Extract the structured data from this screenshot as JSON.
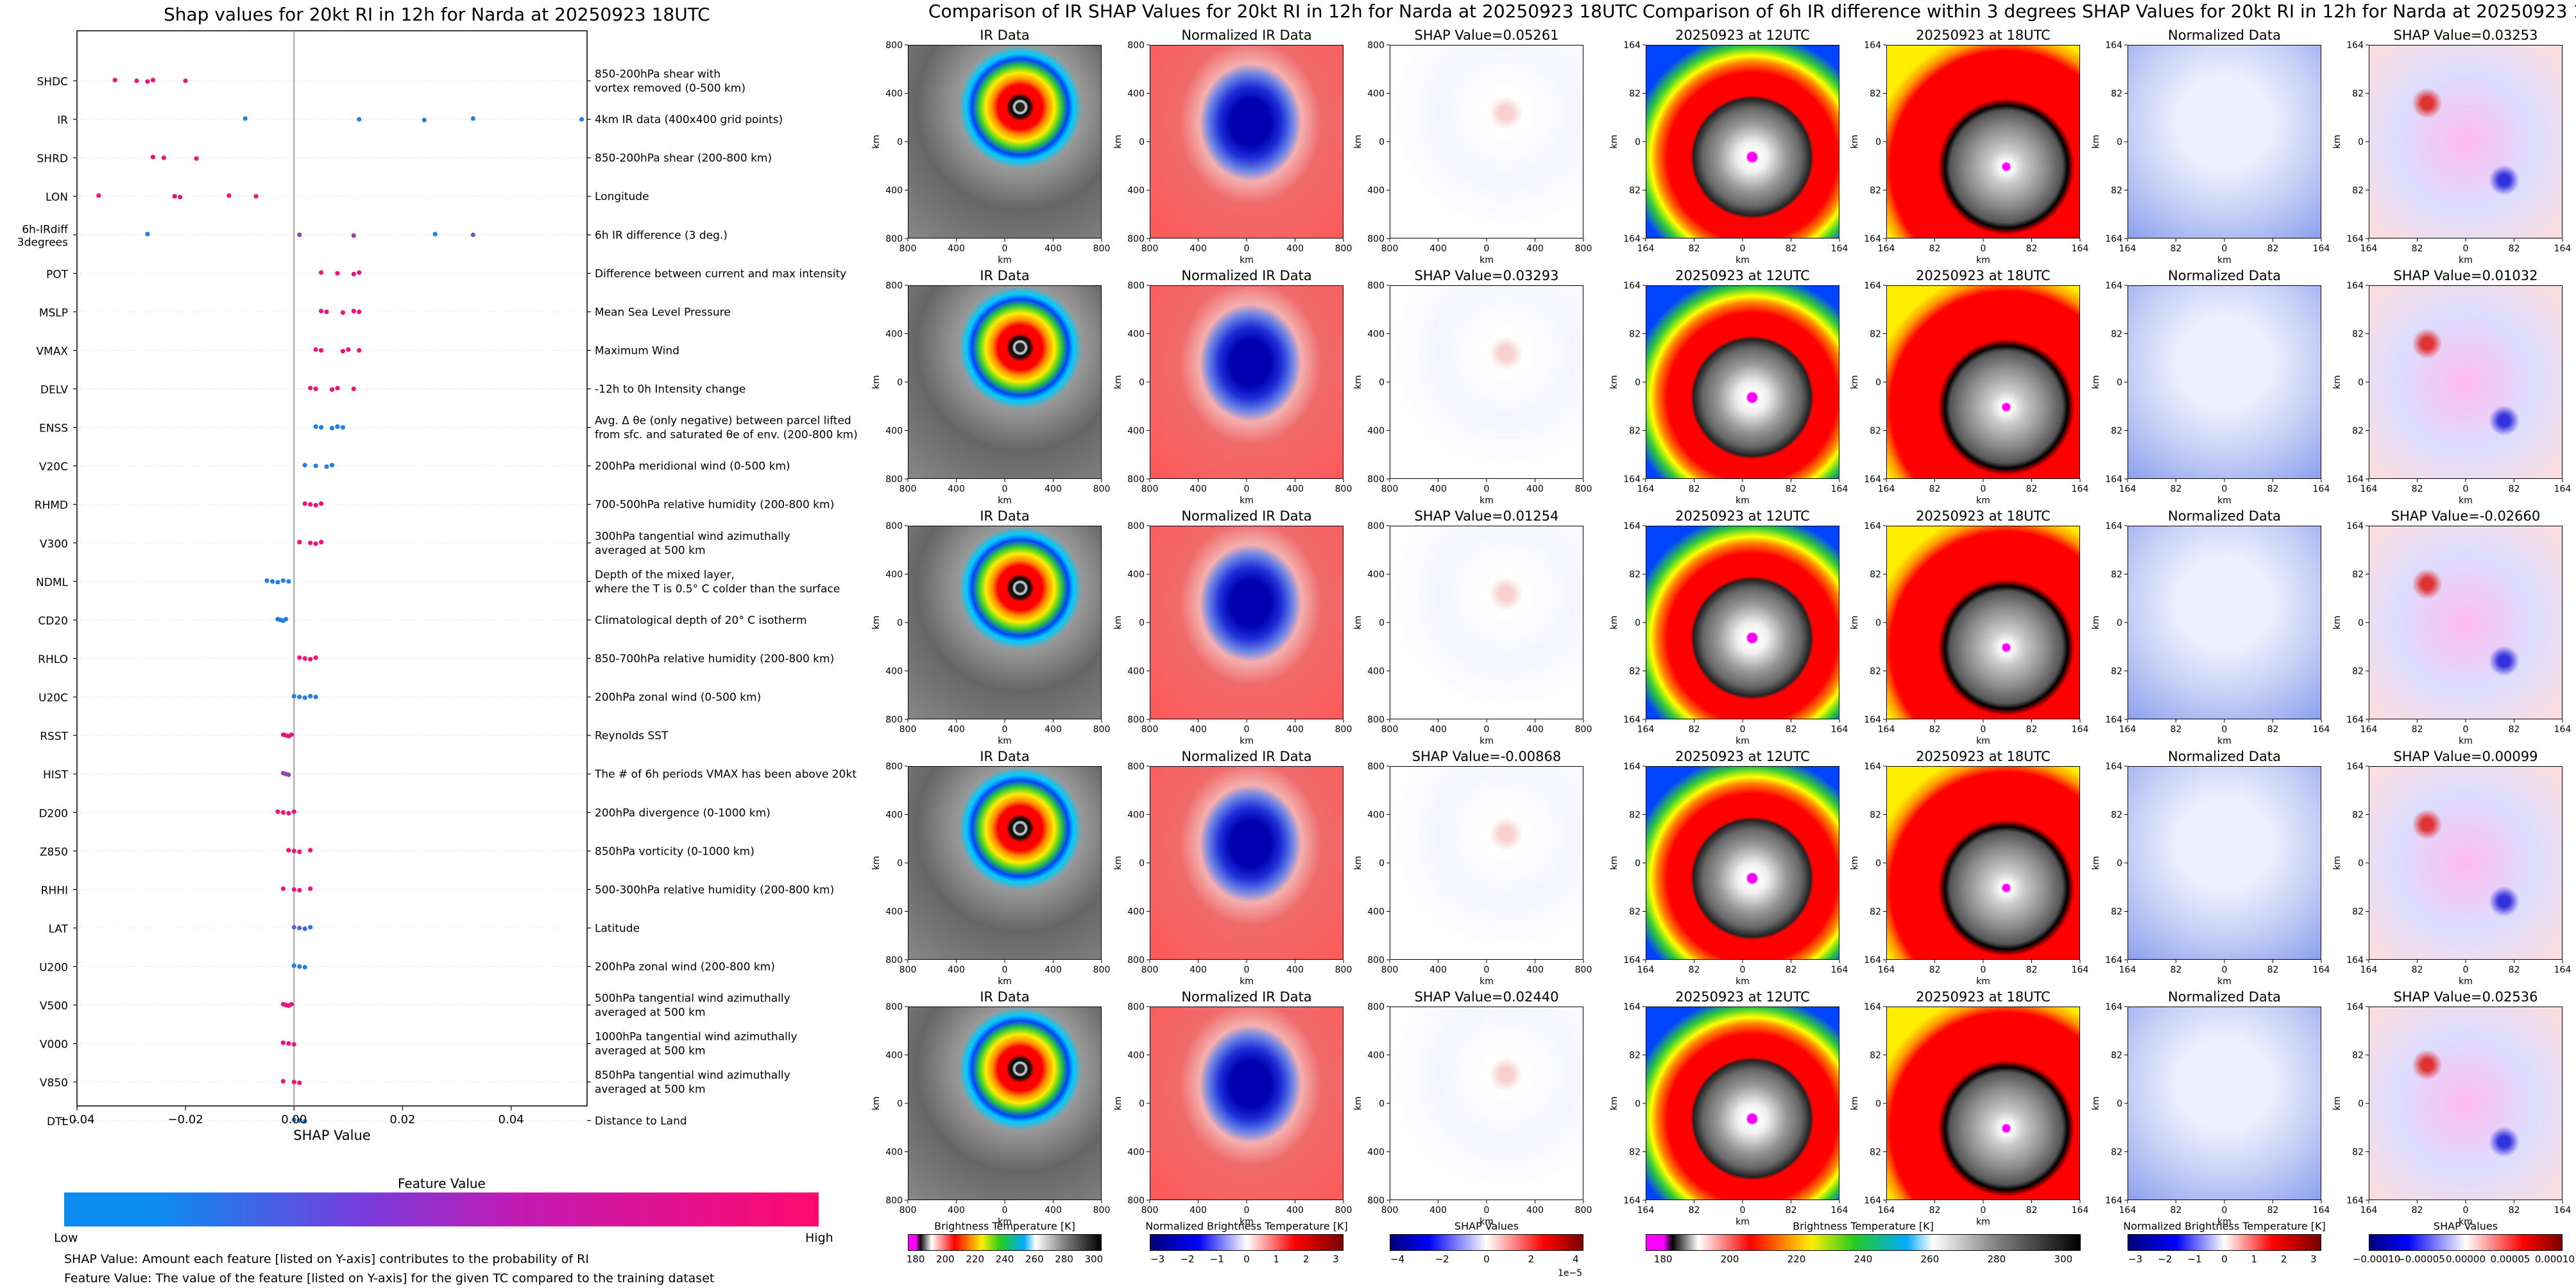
{
  "chart_data": [
    {
      "type": "scatter",
      "title": "Shap values for 20kt RI in 12h for Narda at 20250923 18UTC",
      "xlabel": "SHAP Value",
      "xlim": [
        -0.04,
        0.054
      ],
      "xticks": [
        "−0.04",
        "−0.02",
        "0.00",
        "0.02",
        "0.04"
      ],
      "xtick_values": [
        -0.04,
        -0.02,
        0.0,
        0.02,
        0.04
      ],
      "colorbar": {
        "title": "Feature Value",
        "low_label": "Low",
        "high_label": "High",
        "low_color": "#0a8cf0",
        "high_color": "#ff0a6e"
      },
      "notes": [
        "SHAP Value: Amount each feature [listed on Y-axis] contributes to the probability of RI",
        "Feature Value: The value of the feature [listed on Y-axis] for the given TC compared to the training dataset"
      ],
      "features": [
        {
          "name": "SHDC",
          "desc": "850-200hPa shear with\nvortex removed (0-500 km)",
          "points": [
            [
              -0.033,
              0.95
            ],
            [
              -0.029,
              0.9
            ],
            [
              -0.027,
              0.92
            ],
            [
              -0.026,
              0.95
            ],
            [
              -0.02,
              0.9
            ]
          ]
        },
        {
          "name": "IR",
          "desc": "4km IR data (400x400 grid points)",
          "points": [
            [
              -0.009,
              0.1
            ],
            [
              0.012,
              0.1
            ],
            [
              0.024,
              0.1
            ],
            [
              0.033,
              0.1
            ],
            [
              0.053,
              0.1
            ]
          ]
        },
        {
          "name": "SHRD",
          "desc": "850-200hPa shear (200-800 km)",
          "points": [
            [
              -0.026,
              0.95
            ],
            [
              -0.024,
              0.92
            ],
            [
              -0.018,
              0.92
            ]
          ]
        },
        {
          "name": "LON",
          "desc": "Longitude",
          "points": [
            [
              -0.036,
              0.95
            ],
            [
              -0.022,
              0.92
            ],
            [
              -0.021,
              0.92
            ],
            [
              -0.012,
              0.95
            ],
            [
              -0.007,
              0.92
            ]
          ]
        },
        {
          "name": "6h-IRdiff\n3degrees",
          "desc": "6h IR difference (3 deg.)",
          "points": [
            [
              -0.027,
              0.1
            ],
            [
              0.001,
              0.5
            ],
            [
              0.011,
              0.6
            ],
            [
              0.026,
              0.1
            ],
            [
              0.033,
              0.3
            ]
          ]
        },
        {
          "name": "POT",
          "desc": "Difference between current and max intensity",
          "points": [
            [
              0.005,
              0.9
            ],
            [
              0.008,
              0.92
            ],
            [
              0.011,
              0.92
            ],
            [
              0.012,
              0.95
            ]
          ]
        },
        {
          "name": "MSLP",
          "desc": "Mean Sea Level Pressure",
          "points": [
            [
              0.005,
              0.9
            ],
            [
              0.006,
              0.92
            ],
            [
              0.009,
              0.92
            ],
            [
              0.011,
              0.95
            ],
            [
              0.012,
              0.95
            ]
          ]
        },
        {
          "name": "VMAX",
          "desc": "Maximum Wind",
          "points": [
            [
              0.004,
              0.9
            ],
            [
              0.005,
              0.92
            ],
            [
              0.009,
              0.92
            ],
            [
              0.01,
              0.95
            ],
            [
              0.012,
              0.95
            ]
          ]
        },
        {
          "name": "DELV",
          "desc": "-12h to 0h Intensity change",
          "points": [
            [
              0.003,
              0.9
            ],
            [
              0.004,
              0.92
            ],
            [
              0.007,
              0.95
            ],
            [
              0.008,
              0.92
            ],
            [
              0.011,
              0.95
            ]
          ]
        },
        {
          "name": "ENSS",
          "desc": "Avg. Δ θe (only negative) between parcel lifted\nfrom sfc. and saturated θe of env. (200-800 km)",
          "points": [
            [
              0.004,
              0.1
            ],
            [
              0.005,
              0.1
            ],
            [
              0.007,
              0.1
            ],
            [
              0.008,
              0.1
            ],
            [
              0.009,
              0.1
            ]
          ]
        },
        {
          "name": "V20C",
          "desc": "200hPa meridional wind (0-500 km)",
          "points": [
            [
              0.002,
              0.1
            ],
            [
              0.004,
              0.1
            ],
            [
              0.006,
              0.1
            ],
            [
              0.007,
              0.1
            ]
          ]
        },
        {
          "name": "RHMD",
          "desc": "700-500hPa relative humidity (200-800 km)",
          "points": [
            [
              0.002,
              0.92
            ],
            [
              0.003,
              0.95
            ],
            [
              0.004,
              0.92
            ],
            [
              0.005,
              0.95
            ]
          ]
        },
        {
          "name": "V300",
          "desc": "300hPa tangential wind azimuthally\naveraged at 500 km",
          "points": [
            [
              0.001,
              0.92
            ],
            [
              0.003,
              0.92
            ],
            [
              0.004,
              0.92
            ],
            [
              0.005,
              0.95
            ]
          ]
        },
        {
          "name": "NDML",
          "desc": "Depth of the mixed layer,\nwhere the T is 0.5° C colder than the surface",
          "points": [
            [
              -0.005,
              0.1
            ],
            [
              -0.004,
              0.1
            ],
            [
              -0.003,
              0.1
            ],
            [
              -0.002,
              0.1
            ],
            [
              -0.001,
              0.1
            ]
          ]
        },
        {
          "name": "CD20",
          "desc": "Climatological depth of 20° C isotherm",
          "points": [
            [
              -0.003,
              0.1
            ],
            [
              -0.0025,
              0.1
            ],
            [
              -0.002,
              0.1
            ],
            [
              -0.0015,
              0.1
            ]
          ]
        },
        {
          "name": "RHLO",
          "desc": "850-700hPa relative humidity (200-800 km)",
          "points": [
            [
              0.001,
              0.92
            ],
            [
              0.002,
              0.92
            ],
            [
              0.003,
              0.95
            ],
            [
              0.004,
              0.95
            ]
          ]
        },
        {
          "name": "U20C",
          "desc": "200hPa zonal wind (0-500 km)",
          "points": [
            [
              0.0,
              0.1
            ],
            [
              0.001,
              0.1
            ],
            [
              0.002,
              0.1
            ],
            [
              0.003,
              0.1
            ],
            [
              0.004,
              0.1
            ]
          ]
        },
        {
          "name": "RSST",
          "desc": "Reynolds SST",
          "points": [
            [
              -0.002,
              0.92
            ],
            [
              -0.0015,
              0.92
            ],
            [
              -0.001,
              0.92
            ],
            [
              -0.0005,
              0.92
            ]
          ]
        },
        {
          "name": "HIST",
          "desc": "The # of 6h periods VMAX has been above 20kt",
          "points": [
            [
              -0.002,
              0.5
            ],
            [
              -0.0015,
              0.6
            ],
            [
              -0.001,
              0.5
            ]
          ]
        },
        {
          "name": "D200",
          "desc": "200hPa divergence (0-1000 km)",
          "points": [
            [
              -0.003,
              0.92
            ],
            [
              -0.002,
              0.92
            ],
            [
              -0.001,
              0.95
            ],
            [
              0.0,
              0.92
            ]
          ]
        },
        {
          "name": "Z850",
          "desc": "850hPa vorticity (0-1000 km)",
          "points": [
            [
              -0.001,
              0.92
            ],
            [
              0.0,
              0.92
            ],
            [
              0.001,
              0.95
            ],
            [
              0.003,
              0.95
            ]
          ]
        },
        {
          "name": "RHHI",
          "desc": "500-300hPa relative humidity (200-800 km)",
          "points": [
            [
              -0.002,
              0.92
            ],
            [
              0.0,
              0.92
            ],
            [
              0.001,
              0.95
            ],
            [
              0.003,
              0.95
            ]
          ]
        },
        {
          "name": "LAT",
          "desc": "Latitude",
          "points": [
            [
              0.0,
              0.3
            ],
            [
              0.001,
              0.3
            ],
            [
              0.002,
              0.3
            ],
            [
              0.003,
              0.1
            ]
          ]
        },
        {
          "name": "U200",
          "desc": "200hPa zonal wind (200-800 km)",
          "points": [
            [
              0.0,
              0.1
            ],
            [
              0.001,
              0.1
            ],
            [
              0.002,
              0.1
            ]
          ]
        },
        {
          "name": "V500",
          "desc": "500hPa tangential wind azimuthally\naveraged at 500 km",
          "points": [
            [
              -0.002,
              0.92
            ],
            [
              -0.0015,
              0.92
            ],
            [
              -0.001,
              0.92
            ],
            [
              -0.0005,
              0.92
            ]
          ]
        },
        {
          "name": "V000",
          "desc": "1000hPa tangential wind azimuthally\naveraged at 500 km",
          "points": [
            [
              -0.002,
              0.92
            ],
            [
              -0.001,
              0.92
            ],
            [
              0.0,
              0.92
            ]
          ]
        },
        {
          "name": "V850",
          "desc": "850hPa tangential wind azimuthally\naveraged at 500 km",
          "points": [
            [
              -0.002,
              0.92
            ],
            [
              0.0,
              0.92
            ],
            [
              0.001,
              0.95
            ]
          ]
        },
        {
          "name": "DTL",
          "desc": "Distance to Land",
          "points": [
            [
              0.0,
              0.1
            ],
            [
              0.001,
              0.1
            ],
            [
              0.002,
              0.1
            ]
          ]
        }
      ]
    },
    {
      "type": "heatmap",
      "title": "Comparison of IR SHAP Values for 20kt RI in 12h for Narda at 20250923 18UTC",
      "column_titles": [
        "IR Data",
        "Normalized IR Data"
      ],
      "shap_titles": [
        "SHAP Value=0.05261",
        "SHAP Value=0.03293",
        "SHAP Value=0.01254",
        "SHAP Value=-0.00868",
        "SHAP Value=0.02440"
      ],
      "axis_label": "km",
      "xticks": [
        "800",
        "400",
        "0",
        "400",
        "800"
      ],
      "yticks": [
        "800",
        "400",
        "0",
        "400",
        "800"
      ],
      "colorbars": [
        {
          "label": "Brightness Temperature [K]",
          "ticks": [
            "180",
            "200",
            "220",
            "240",
            "260",
            "280",
            "300"
          ]
        },
        {
          "label": "Normalized Brightness Temperature [K]",
          "ticks": [
            "−3",
            "−2",
            "−1",
            "0",
            "1",
            "2",
            "3"
          ]
        },
        {
          "label": "SHAP Values",
          "ticks": [
            "−4",
            "−2",
            "0",
            "2",
            "4"
          ],
          "offset": "1e−5"
        }
      ]
    },
    {
      "type": "heatmap",
      "title": "Comparison of 6h IR difference within 3 degrees SHAP Values for 20kt RI in 12h for Narda at 20250923 18UTC",
      "column_titles": [
        "20250923 at 12UTC",
        "20250923 at 18UTC",
        "Normalized Data"
      ],
      "shap_titles": [
        "SHAP Value=0.03253",
        "SHAP Value=0.01032",
        "SHAP Value=-0.02660",
        "SHAP Value=0.00099",
        "SHAP Value=0.02536"
      ],
      "axis_label": "km",
      "xticks": [
        "164",
        "82",
        "0",
        "82",
        "164"
      ],
      "yticks": [
        "164",
        "82",
        "0",
        "82",
        "164"
      ],
      "colorbars": [
        {
          "label": "Brightness Temperature [K]",
          "ticks": [
            "180",
            "200",
            "220",
            "240",
            "260",
            "280",
            "300"
          ]
        },
        {
          "label": "Normalized Brightness Temperature [K]",
          "ticks": [
            "−3",
            "−2",
            "−1",
            "0",
            "1",
            "2",
            "3"
          ]
        },
        {
          "label": "SHAP Values",
          "ticks": [
            "−0.00010",
            "−0.00005",
            "0.00000",
            "0.00005",
            "0.00010"
          ]
        }
      ]
    }
  ]
}
